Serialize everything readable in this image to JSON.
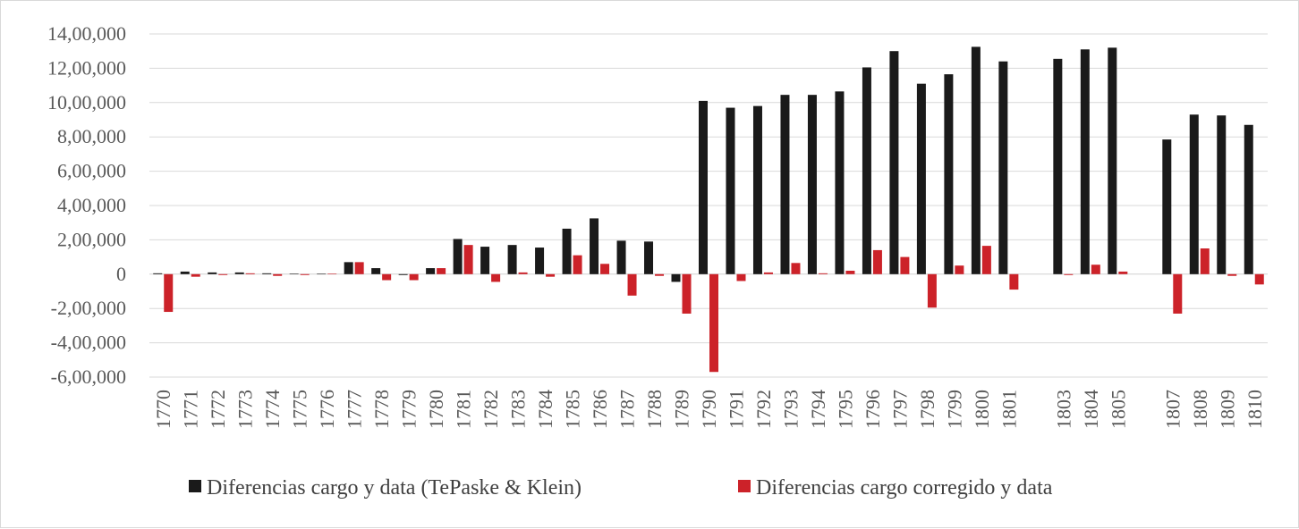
{
  "chart_data": {
    "type": "bar",
    "title": "",
    "xlabel": "",
    "ylabel": "",
    "ylim": [
      -600000,
      1400000
    ],
    "y_ticks": [
      {
        "value": 1400000,
        "label": "14,00,000"
      },
      {
        "value": 1200000,
        "label": "12,00,000"
      },
      {
        "value": 1000000,
        "label": "10,00,000"
      },
      {
        "value": 800000,
        "label": "8,00,000"
      },
      {
        "value": 600000,
        "label": "6,00,000"
      },
      {
        "value": 400000,
        "label": "4,00,000"
      },
      {
        "value": 200000,
        "label": "2,00,000"
      },
      {
        "value": 0,
        "label": "0"
      },
      {
        "value": -200000,
        "label": "-2,00,000"
      },
      {
        "value": -400000,
        "label": "-4,00,000"
      },
      {
        "value": -600000,
        "label": "-6,00,000"
      }
    ],
    "grid": true,
    "legend_position": "bottom",
    "categories": [
      "1770",
      "1771",
      "1772",
      "1773",
      "1774",
      "1775",
      "1776",
      "1777",
      "1778",
      "1779",
      "1780",
      "1781",
      "1782",
      "1783",
      "1784",
      "1785",
      "1786",
      "1787",
      "1788",
      "1789",
      "1790",
      "1791",
      "1792",
      "1793",
      "1794",
      "1795",
      "1796",
      "1797",
      "1798",
      "1799",
      "1800",
      "1801",
      "",
      "1803",
      "1804",
      "1805",
      "",
      "1807",
      "1808",
      "1809",
      "1810"
    ],
    "series": [
      {
        "name": "Diferencias cargo y data (TePaske & Klein)",
        "color": "#1a1a1a",
        "values": [
          5000,
          15000,
          10000,
          10000,
          5000,
          3000,
          2000,
          70000,
          35000,
          -5000,
          35000,
          205000,
          160000,
          170000,
          155000,
          265000,
          325000,
          195000,
          190000,
          -45000,
          1010000,
          970000,
          980000,
          1045000,
          1045000,
          1065000,
          1205000,
          1300000,
          1110000,
          1165000,
          1325000,
          1240000,
          null,
          1255000,
          1310000,
          1320000,
          null,
          785000,
          930000,
          925000,
          870000
        ]
      },
      {
        "name": "Diferencias cargo corregido y data",
        "color": "#cc2229",
        "values": [
          -220000,
          -15000,
          -5000,
          5000,
          -10000,
          -5000,
          3000,
          70000,
          -35000,
          -35000,
          35000,
          170000,
          -45000,
          10000,
          -15000,
          110000,
          60000,
          -125000,
          -10000,
          -230000,
          -570000,
          -40000,
          10000,
          65000,
          5000,
          20000,
          140000,
          100000,
          -195000,
          50000,
          165000,
          -90000,
          null,
          -5000,
          55000,
          15000,
          null,
          -230000,
          150000,
          -10000,
          -60000
        ]
      }
    ]
  }
}
